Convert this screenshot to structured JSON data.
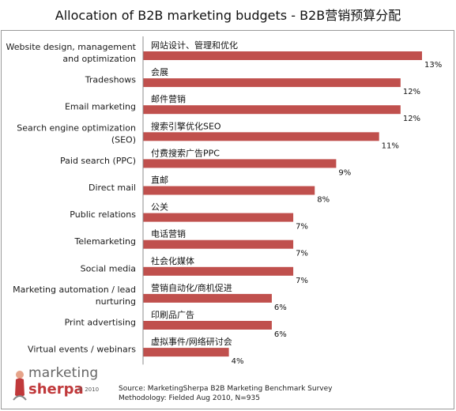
{
  "title": "Allocation of B2B marketing budgets - B2B营销预算分配",
  "chart_data": {
    "type": "bar",
    "orientation": "horizontal",
    "categories": [
      [
        "Website design, management",
        "and optimization"
      ],
      [
        "Tradeshows"
      ],
      [
        "Email marketing"
      ],
      [
        "Search engine optimization",
        "(SEO)"
      ],
      [
        "Paid search (PPC)"
      ],
      [
        "Direct mail"
      ],
      [
        "Public relations"
      ],
      [
        "Telemarketing"
      ],
      [
        "Social media"
      ],
      [
        "Marketing automation / lead",
        "nurturing"
      ],
      [
        "Print advertising"
      ],
      [
        "Virtual events / webinars"
      ]
    ],
    "chinese_labels": [
      "网站设计、管理和优化",
      "会展",
      "邮件营销",
      "搜索引擎优化SEO",
      "付费搜索广告PPC",
      "直邮",
      "公关",
      "电话营销",
      "社会化媒体",
      "营销自动化/商机促进",
      "印刷品广告",
      "虚拟事件/网络研讨会"
    ],
    "values": [
      13,
      12,
      12,
      11,
      9,
      8,
      7,
      7,
      7,
      6,
      6,
      4
    ],
    "value_labels": [
      "13%",
      "12%",
      "12%",
      "11%",
      "9%",
      "8%",
      "7%",
      "7%",
      "7%",
      "6%",
      "6%",
      "4%"
    ],
    "xlim": [
      0,
      13.7
    ],
    "bar_color": "#c0504d",
    "grid": false,
    "legend": "none"
  },
  "logo": {
    "line1": "marketing",
    "line2": "sherpa",
    "year": "© 2010"
  },
  "source": {
    "line1": "Source: MarketingSherpa B2B Marketing Benchmark Survey",
    "line2": "Methodology: Fielded Aug 2010, N=935"
  }
}
